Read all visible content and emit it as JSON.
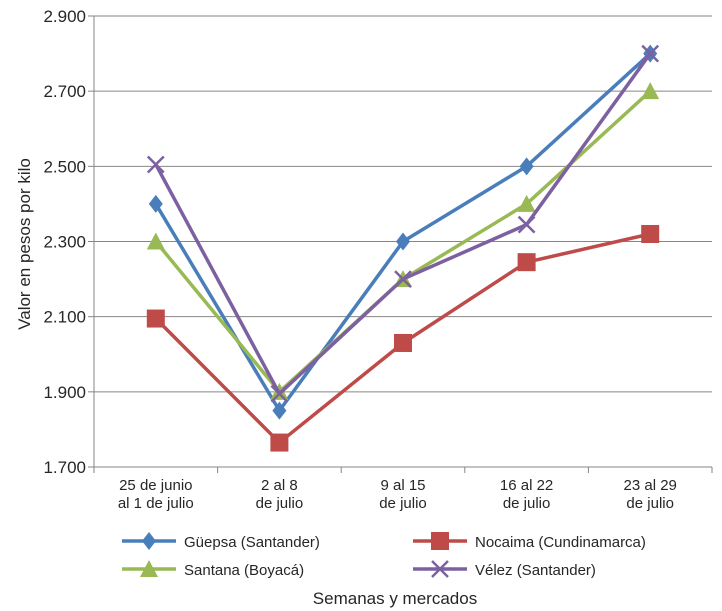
{
  "chart_data": {
    "type": "line",
    "title": "",
    "xlabel": "Semanas y mercados",
    "ylabel": "Valor en pesos por kilo",
    "categories": [
      [
        "25 de junio",
        "al 1 de julio"
      ],
      [
        "2 al 8",
        "de julio"
      ],
      [
        "9 al 15",
        "de julio"
      ],
      [
        "16 al 22",
        "de julio"
      ],
      [
        "23 al 29",
        "de julio"
      ]
    ],
    "y_ticks": [
      "1.700",
      "1.900",
      "2.100",
      "2.300",
      "2.500",
      "2.700",
      "2.900"
    ],
    "ylim": [
      1700,
      2900
    ],
    "grid": true,
    "legend_position": "bottom",
    "series": [
      {
        "name": "Güepsa (Santander)",
        "color": "#4a7ebb",
        "marker": "diamond",
        "values": [
          2400,
          1850,
          2300,
          2500,
          2800
        ]
      },
      {
        "name": "Nocaima (Cundinamarca)",
        "color": "#be4b48",
        "marker": "square",
        "values": [
          2095,
          1765,
          2030,
          2245,
          2320
        ]
      },
      {
        "name": "Santana (Boyacá)",
        "color": "#98b954",
        "marker": "triangle",
        "values": [
          2300,
          1900,
          2200,
          2400,
          2700
        ]
      },
      {
        "name": "Vélez (Santander)",
        "color": "#7d60a0",
        "marker": "x",
        "values": [
          2505,
          1895,
          2200,
          2345,
          2800
        ]
      }
    ]
  }
}
